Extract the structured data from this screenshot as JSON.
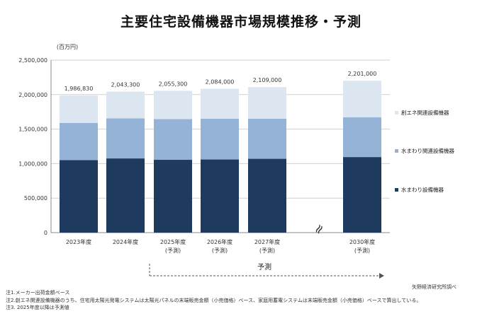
{
  "title": "主要住宅設備機器市場規模推移・予測",
  "chart_data": {
    "type": "bar",
    "stacked": true,
    "unit_label": "(百万円)",
    "categories": [
      [
        "2023年度"
      ],
      [
        "2024年度"
      ],
      [
        "2025年度",
        "(予測)"
      ],
      [
        "2026年度",
        "(予測)"
      ],
      [
        "2027年度",
        "(予測)"
      ],
      [
        "2030年度",
        "(予測)"
      ]
    ],
    "totals": [
      1986830,
      2043300,
      2055300,
      2084000,
      2109000,
      2201000
    ],
    "total_labels": [
      "1,986,830",
      "2,043,300",
      "2,055,300",
      "2,084,000",
      "2,109,000",
      "2,201,000"
    ],
    "series": [
      {
        "name": "水まわり設備機器",
        "color": "#1f3a5f",
        "values": [
          1050000,
          1075000,
          1055000,
          1060000,
          1070000,
          1095000
        ]
      },
      {
        "name": "水まわり関連設備機器",
        "color": "#95b3d7",
        "values": [
          540000,
          580000,
          590000,
          590000,
          580000,
          575000
        ]
      },
      {
        "name": "創エネ関連設備機器",
        "color": "#dce6f1",
        "values": [
          396830,
          388300,
          410300,
          434000,
          459000,
          531000
        ]
      }
    ],
    "legend_order": [
      "創エネ関連設備機器",
      "水まわり関連設備機器",
      "水まわり設備機器"
    ],
    "legend_position": "right",
    "ylim": [
      0,
      2500000
    ],
    "yticks": [
      0,
      500000,
      1000000,
      1500000,
      2000000,
      2500000
    ],
    "ytick_labels": [
      "0",
      "500,000",
      "1,000,000",
      "1,500,000",
      "2,000,000",
      "2,500,000"
    ],
    "grid": true,
    "axis_break_symbol": "≈",
    "forecast_label": "予測"
  },
  "source": "矢野経済研究所調べ",
  "notes": [
    "注1.メーカー出荷金額ベース",
    "注2.創エネ関連設備機器のうち、住宅用太陽光発電システムは太陽光パネルの末端販売金額（小売価格）ベース、家庭用蓄電システムは末端販売金額（小売価格）ベースで算出している。",
    "注3. 2025年度以降は予測値"
  ]
}
